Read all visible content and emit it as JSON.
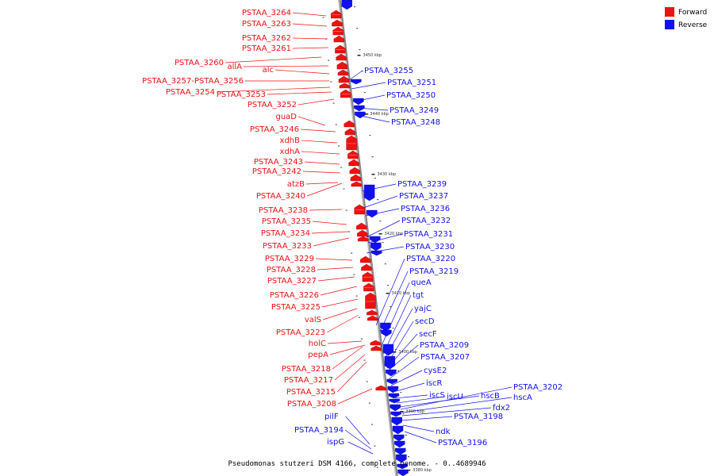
{
  "caption": "Pseudomonas stutzeri DSM 4166, complete genome. - 0..4689946",
  "colors": {
    "forward": "#ee1111",
    "reverse": "#1111ee",
    "backbone": "#999999"
  },
  "legend": [
    {
      "label": "Forward",
      "color": "#ee1111"
    },
    {
      "label": "Reverse",
      "color": "#1111ee"
    }
  ],
  "ticks": [
    "3450 kbp",
    "3440 kbp",
    "3430 kbp",
    "3420 kbp",
    "3410 kbp",
    "3400 kbp",
    "3390 kbp",
    "3380 kbp"
  ],
  "forward_labels": [
    "PSTAA_3264",
    "PSTAA_3263",
    "PSTAA_3262",
    "PSTAA_3261",
    "PSTAA_3260",
    "allA",
    "alc",
    "PSTAA_3257-PSTAA_3256",
    "PSTAA_3254",
    "PSTAA_3253",
    "PSTAA_3252",
    "guaD",
    "PSTAA_3246",
    "xdhB",
    "xdhA",
    "PSTAA_3243",
    "PSTAA_3242",
    "atzB",
    "PSTAA_3240",
    "PSTAA_3238",
    "PSTAA_3235",
    "PSTAA_3234",
    "PSTAA_3233",
    "PSTAA_3229",
    "PSTAA_3228",
    "PSTAA_3227",
    "PSTAA_3226",
    "PSTAA_3225",
    "valS",
    "PSTAA_3223",
    "holC",
    "pepA",
    "PSTAA_3218",
    "PSTAA_3217",
    "PSTAA_3215",
    "PSTAA_3208"
  ],
  "reverse_labels": [
    "PSTAA_3255",
    "PSTAA_3251",
    "PSTAA_3250",
    "PSTAA_3249",
    "PSTAA_3248",
    "PSTAA_3239",
    "PSTAA_3237",
    "PSTAA_3236",
    "PSTAA_3232",
    "PSTAA_3231",
    "PSTAA_3230",
    "PSTAA_3220",
    "PSTAA_3219",
    "queA",
    "tgt",
    "yajC",
    "secD",
    "secF",
    "PSTAA_3209",
    "PSTAA_3207",
    "cysE2",
    "iscR",
    "iscS",
    "iscU",
    "hscB",
    "PSTAA_3202",
    "hscA",
    "fdx2",
    "PSTAA_3198",
    "ndk",
    "PSTAA_3196",
    "pilF",
    "PSTAA_3194",
    "ispG"
  ]
}
